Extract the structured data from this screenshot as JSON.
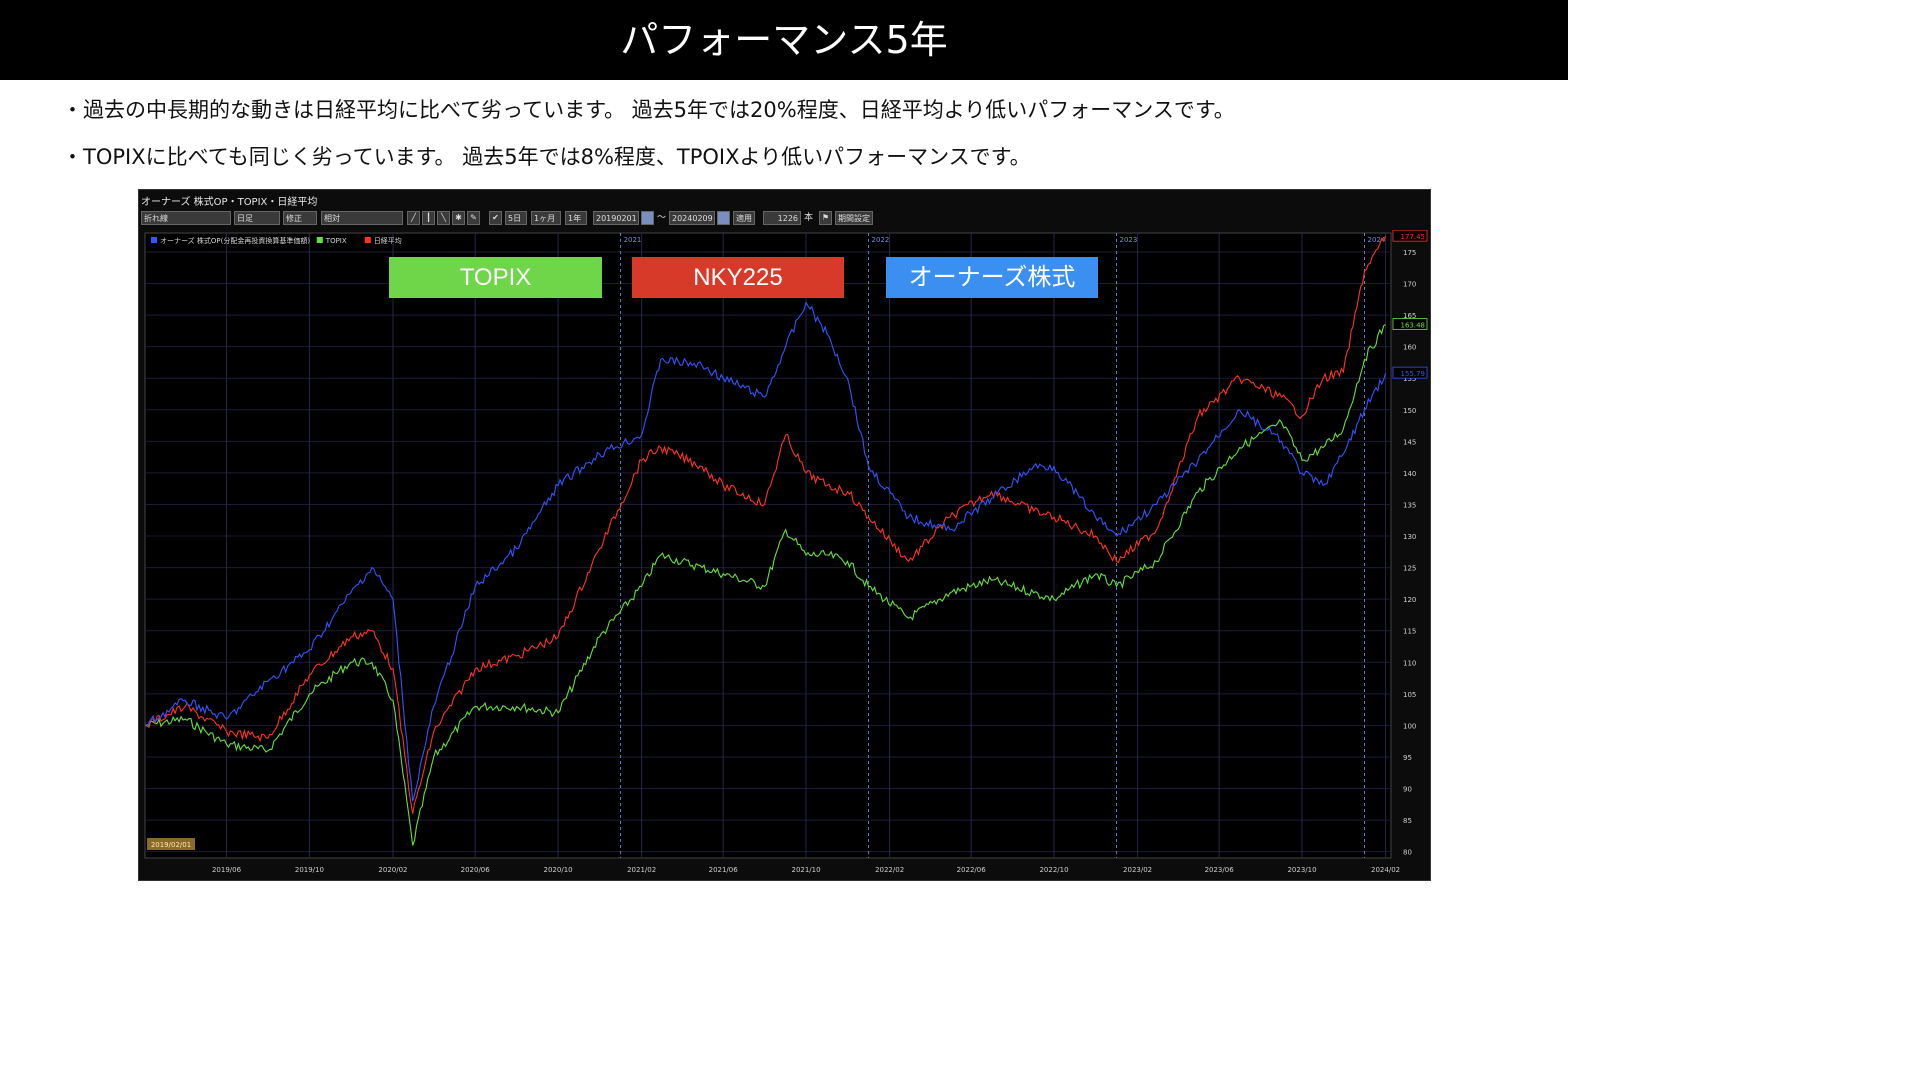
{
  "slide": {
    "title": "パフォーマンス5年",
    "bullets": [
      "・過去の中長期的な動きは日経平均に比べて劣っています。 過去5年では20%程度、日経平均より低いパフォーマンスです。",
      "・TOPIXに比べても同じく劣っています。 過去5年では8%程度、TPOIXより低いパフォーマンスです。"
    ]
  },
  "chart_window": {
    "title": "オーナーズ 株式OP・TOPIX・日経平均",
    "toolbar": {
      "chart_type": "折れ線",
      "period_type": "日足",
      "adjust": "修正",
      "scale_mode": "相対",
      "btn_5d": "5日",
      "btn_1m": "1ヶ月",
      "btn_1y": "1年",
      "start_date": "20190201",
      "tilde": "〜",
      "end_date": "20240209",
      "apply": "適用",
      "bars": "1226",
      "bars_unit": "本",
      "settings": "期間設定"
    },
    "start_marker": "2019/02/01"
  },
  "label_boxes": [
    {
      "text": "TOPIX",
      "color": "#6fd64a"
    },
    {
      "text": "NKY225",
      "color": "#d83a2a"
    },
    {
      "text": "オーナーズ株式",
      "color": "#3a8ff0"
    }
  ],
  "chart_data": {
    "type": "line",
    "legend": [
      "オーナーズ 株式OP(分配金再投資換算基準価額)",
      "TOPIX",
      "日経平均"
    ],
    "legend_position": "top-left",
    "ylim": [
      79,
      178
    ],
    "y_ticks": [
      80,
      85,
      90,
      95,
      100,
      105,
      110,
      115,
      120,
      125,
      130,
      135,
      140,
      145,
      150,
      155,
      160,
      165,
      170,
      175
    ],
    "x_ticks": [
      "2019/06",
      "2019/10",
      "2020/02",
      "2020/06",
      "2020/10",
      "2021/02",
      "2021/06",
      "2021/10",
      "2022/02",
      "2022/06",
      "2022/10",
      "2023/02",
      "2023/06",
      "2023/10",
      "2024/02"
    ],
    "year_markers": [
      "2021",
      "2022",
      "2023",
      "2024"
    ],
    "grid": true,
    "last_values": {
      "owners": "155.79",
      "topix": "163.48",
      "nikkei": "177.45"
    },
    "series": [
      {
        "name": "オーナーズ 株式OP(分配金再投資換算基準価額)",
        "color": "#3355ff",
        "x": [
          "2019-02",
          "2019-04",
          "2019-06",
          "2019-08",
          "2019-10",
          "2019-12",
          "2020-01",
          "2020-02",
          "2020-03",
          "2020-04",
          "2020-06",
          "2020-08",
          "2020-10",
          "2020-12",
          "2021-02",
          "2021-03",
          "2021-05",
          "2021-06",
          "2021-08",
          "2021-09",
          "2021-10",
          "2021-11",
          "2021-12",
          "2022-01",
          "2022-03",
          "2022-05",
          "2022-07",
          "2022-09",
          "2022-10",
          "2022-12",
          "2023-01",
          "2023-03",
          "2023-05",
          "2023-07",
          "2023-09",
          "2023-10",
          "2023-11",
          "2023-12",
          "2024-01",
          "2024-02"
        ],
        "values": [
          100,
          104,
          101,
          107,
          112,
          121,
          125,
          120,
          88,
          103,
          122,
          128,
          138,
          143,
          146,
          158,
          157,
          155,
          152,
          160,
          167,
          162,
          155,
          141,
          133,
          131,
          136,
          141,
          141,
          133,
          130,
          135,
          142,
          150,
          145,
          140,
          138,
          143,
          150,
          155.8
        ]
      },
      {
        "name": "TOPIX",
        "color": "#66e040",
        "x": [
          "2019-02",
          "2019-04",
          "2019-06",
          "2019-08",
          "2019-10",
          "2019-12",
          "2020-01",
          "2020-02",
          "2020-03",
          "2020-04",
          "2020-06",
          "2020-08",
          "2020-10",
          "2020-12",
          "2021-02",
          "2021-03",
          "2021-05",
          "2021-06",
          "2021-08",
          "2021-09",
          "2021-10",
          "2021-11",
          "2021-12",
          "2022-01",
          "2022-03",
          "2022-05",
          "2022-07",
          "2022-09",
          "2022-10",
          "2022-12",
          "2023-01",
          "2023-03",
          "2023-05",
          "2023-07",
          "2023-09",
          "2023-10",
          "2023-11",
          "2023-12",
          "2024-01",
          "2024-02"
        ],
        "values": [
          100,
          101,
          97,
          96,
          105,
          110,
          110,
          104,
          81,
          95,
          103,
          103,
          102,
          114,
          122,
          127,
          125,
          124,
          122,
          131,
          127,
          127,
          126,
          122,
          117,
          121,
          123,
          121,
          120,
          124,
          122,
          126,
          137,
          144,
          148,
          142,
          144,
          147,
          158,
          163.5
        ]
      },
      {
        "name": "日経平均",
        "color": "#ff3322",
        "x": [
          "2019-02",
          "2019-04",
          "2019-06",
          "2019-08",
          "2019-10",
          "2019-12",
          "2020-01",
          "2020-02",
          "2020-03",
          "2020-04",
          "2020-06",
          "2020-08",
          "2020-10",
          "2020-12",
          "2021-02",
          "2021-03",
          "2021-05",
          "2021-06",
          "2021-08",
          "2021-09",
          "2021-10",
          "2021-11",
          "2021-12",
          "2022-01",
          "2022-03",
          "2022-05",
          "2022-07",
          "2022-09",
          "2022-10",
          "2022-12",
          "2023-01",
          "2023-03",
          "2023-05",
          "2023-07",
          "2023-09",
          "2023-10",
          "2023-11",
          "2023-12",
          "2024-01",
          "2024-02"
        ],
        "values": [
          100,
          103,
          99,
          98,
          108,
          114,
          115,
          109,
          86,
          99,
          109,
          111,
          114,
          128,
          142,
          144,
          141,
          138,
          135,
          146,
          140,
          138,
          137,
          133,
          126,
          133,
          137,
          134,
          133,
          130,
          126,
          131,
          149,
          155,
          152,
          149,
          155,
          156,
          172,
          177.5
        ]
      }
    ]
  }
}
